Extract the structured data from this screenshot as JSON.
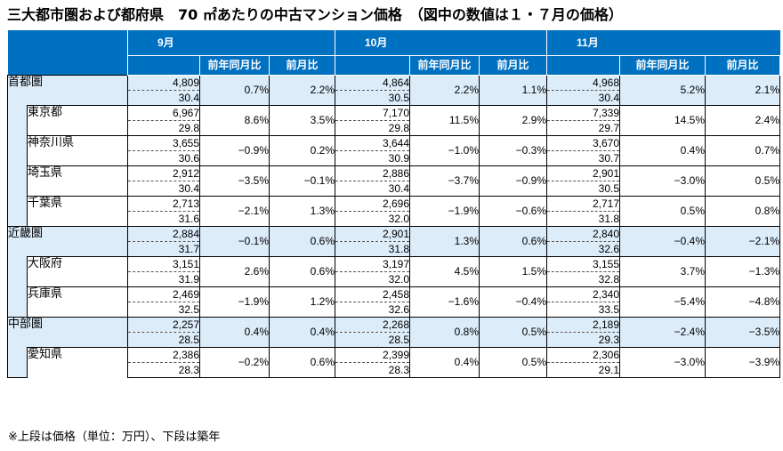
{
  "title": "三大都市圏および都府県　70 ㎡あたりの中古マンション価格　（図中の数値は１・７月の価格）",
  "footnote": "※上段は価格（単位：万円）、下段は築年",
  "months": [
    "9月",
    "10月",
    "11月"
  ],
  "subheaders": [
    "前年同月比",
    "前月比"
  ],
  "rows": [
    {
      "name": "首都圏",
      "level": 0,
      "shade": true,
      "m": [
        {
          "price": "4,809",
          "age": "30.4",
          "yoy": "0.7%",
          "mom": "2.2%"
        },
        {
          "price": "4,864",
          "age": "30.5",
          "yoy": "2.2%",
          "mom": "1.1%"
        },
        {
          "price": "4,968",
          "age": "30.4",
          "yoy": "5.2%",
          "mom": "2.1%"
        }
      ]
    },
    {
      "name": "東京都",
      "level": 1,
      "shade": false,
      "m": [
        {
          "price": "6,967",
          "age": "29.8",
          "yoy": "8.6%",
          "mom": "3.5%"
        },
        {
          "price": "7,170",
          "age": "29.8",
          "yoy": "11.5%",
          "mom": "2.9%"
        },
        {
          "price": "7,339",
          "age": "29.7",
          "yoy": "14.5%",
          "mom": "2.4%"
        }
      ]
    },
    {
      "name": "神奈川県",
      "level": 1,
      "shade": false,
      "m": [
        {
          "price": "3,655",
          "age": "30.6",
          "yoy": "−0.9%",
          "mom": "0.2%"
        },
        {
          "price": "3,644",
          "age": "30.9",
          "yoy": "−1.0%",
          "mom": "−0.3%"
        },
        {
          "price": "3,670",
          "age": "30.7",
          "yoy": "0.4%",
          "mom": "0.7%"
        }
      ]
    },
    {
      "name": "埼玉県",
      "level": 1,
      "shade": false,
      "m": [
        {
          "price": "2,912",
          "age": "30.4",
          "yoy": "−3.5%",
          "mom": "−0.1%"
        },
        {
          "price": "2,886",
          "age": "30.4",
          "yoy": "−3.7%",
          "mom": "−0.9%"
        },
        {
          "price": "2,901",
          "age": "30.5",
          "yoy": "−3.0%",
          "mom": "0.5%"
        }
      ]
    },
    {
      "name": "千葉県",
      "level": 1,
      "shade": false,
      "m": [
        {
          "price": "2,713",
          "age": "31.6",
          "yoy": "−2.1%",
          "mom": "1.3%"
        },
        {
          "price": "2,696",
          "age": "32.0",
          "yoy": "−1.9%",
          "mom": "−0.6%"
        },
        {
          "price": "2,717",
          "age": "31.8",
          "yoy": "0.5%",
          "mom": "0.8%"
        }
      ]
    },
    {
      "name": "近畿圏",
      "level": 0,
      "shade": true,
      "m": [
        {
          "price": "2,884",
          "age": "31.7",
          "yoy": "−0.1%",
          "mom": "0.6%"
        },
        {
          "price": "2,901",
          "age": "31.8",
          "yoy": "1.3%",
          "mom": "0.6%"
        },
        {
          "price": "2,840",
          "age": "32.6",
          "yoy": "−0.4%",
          "mom": "−2.1%"
        }
      ]
    },
    {
      "name": "大阪府",
      "level": 1,
      "shade": false,
      "m": [
        {
          "price": "3,151",
          "age": "31.9",
          "yoy": "2.6%",
          "mom": "0.6%"
        },
        {
          "price": "3,197",
          "age": "32.0",
          "yoy": "4.5%",
          "mom": "1.5%"
        },
        {
          "price": "3,155",
          "age": "32.8",
          "yoy": "3.7%",
          "mom": "−1.3%"
        }
      ]
    },
    {
      "name": "兵庫県",
      "level": 1,
      "shade": false,
      "m": [
        {
          "price": "2,469",
          "age": "32.5",
          "yoy": "−1.9%",
          "mom": "1.2%"
        },
        {
          "price": "2,458",
          "age": "32.6",
          "yoy": "−1.6%",
          "mom": "−0.4%"
        },
        {
          "price": "2,340",
          "age": "33.5",
          "yoy": "−5.4%",
          "mom": "−4.8%"
        }
      ]
    },
    {
      "name": "中部圏",
      "level": 0,
      "shade": true,
      "m": [
        {
          "price": "2,257",
          "age": "28.5",
          "yoy": "0.4%",
          "mom": "0.4%"
        },
        {
          "price": "2,268",
          "age": "28.5",
          "yoy": "0.8%",
          "mom": "0.5%"
        },
        {
          "price": "2,189",
          "age": "29.3",
          "yoy": "−2.4%",
          "mom": "−3.5%"
        }
      ]
    },
    {
      "name": "愛知県",
      "level": 1,
      "shade": false,
      "m": [
        {
          "price": "2,386",
          "age": "28.3",
          "yoy": "−0.2%",
          "mom": "0.6%"
        },
        {
          "price": "2,399",
          "age": "28.3",
          "yoy": "0.4%",
          "mom": "0.5%"
        },
        {
          "price": "2,306",
          "age": "29.1",
          "yoy": "−3.0%",
          "mom": "−3.9%"
        }
      ]
    }
  ]
}
